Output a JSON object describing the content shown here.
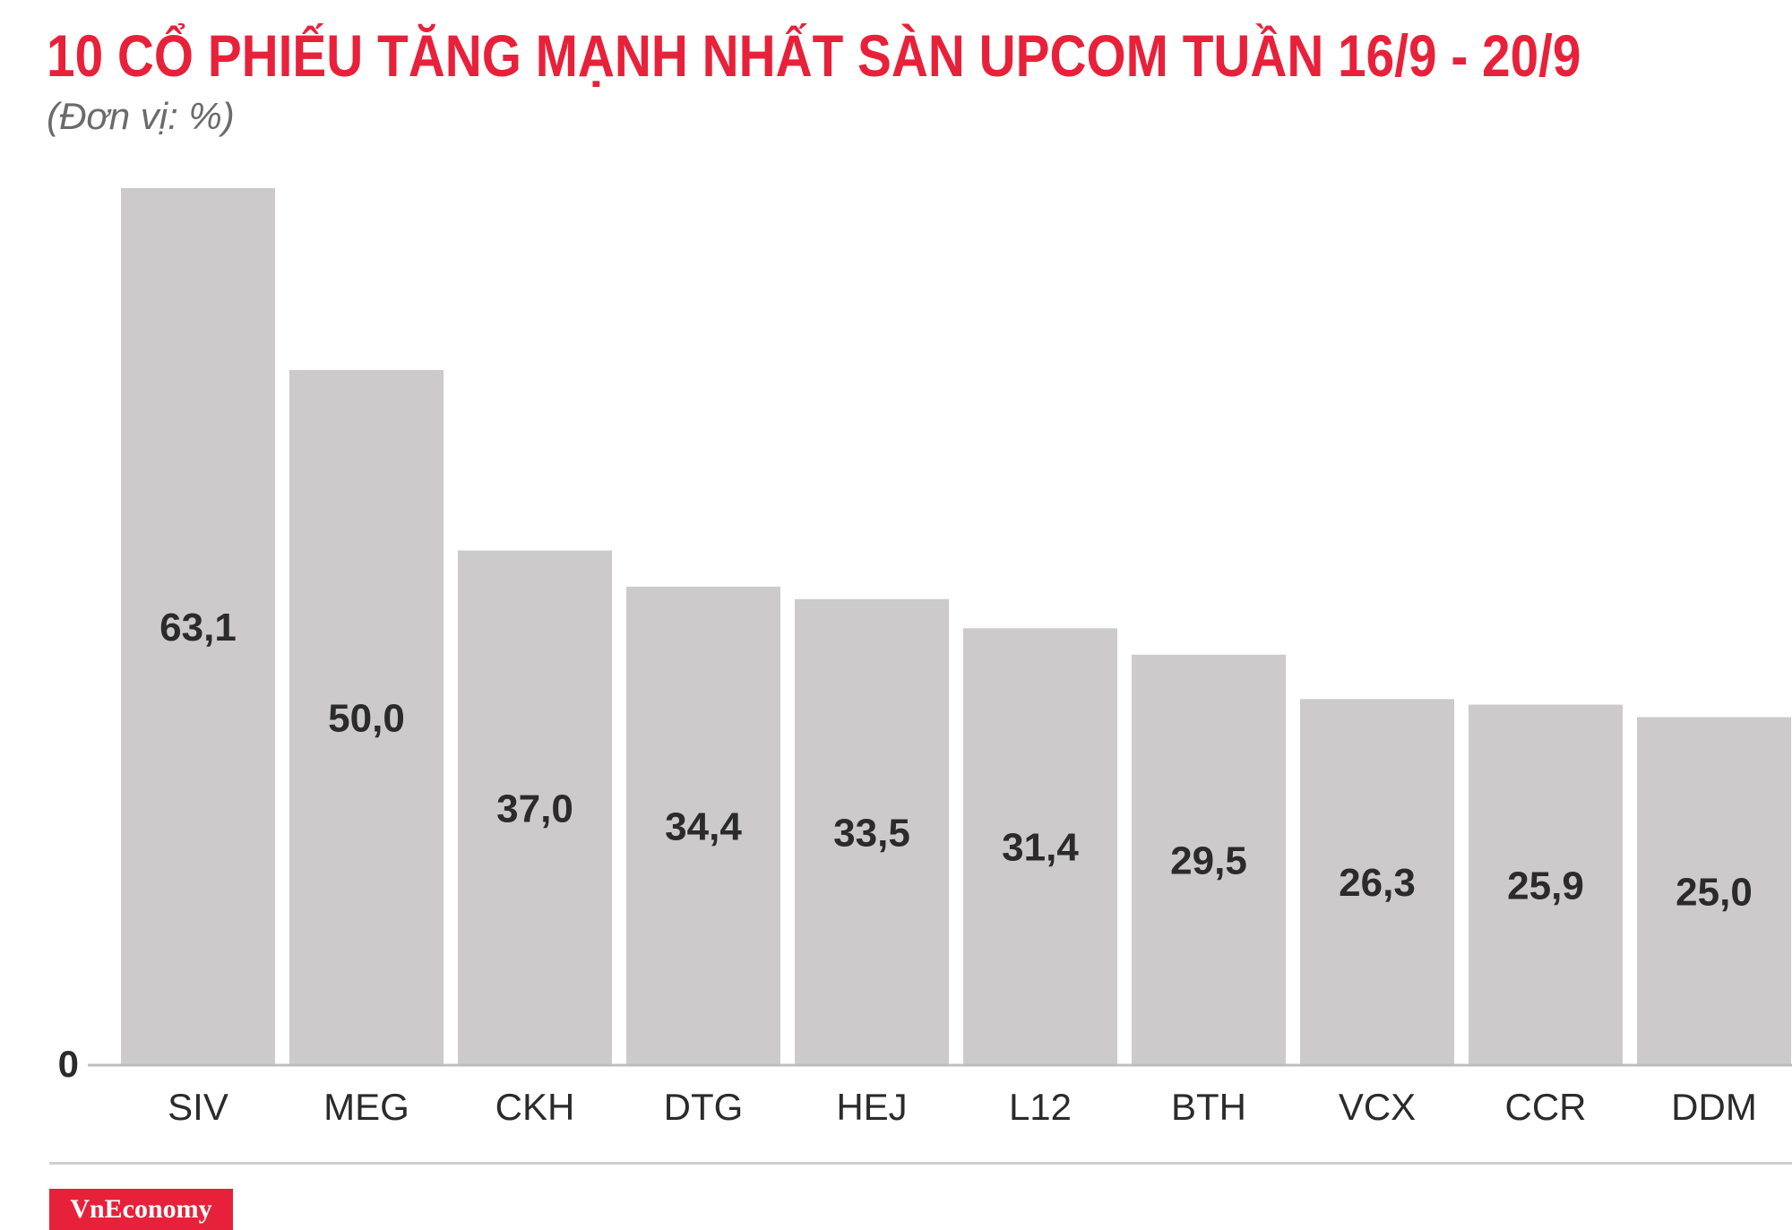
{
  "title": "10 CỔ PHIẾU TĂNG MẠNH NHẤT SÀN UPCOM TUẦN 16/9 - 20/9",
  "subtitle": "(Đơn vị: %)",
  "logo_text": "VnEconomy",
  "colors": {
    "title": "#e8213a",
    "bar": "#cccacb",
    "axis": "#bdbdbd",
    "label": "#2b2b2b",
    "logo_bg": "#e8213a"
  },
  "chart_data": {
    "type": "bar",
    "title": "10 CỔ PHIẾU TĂNG MẠNH NHẤT SÀN UPCOM TUẦN 16/9 - 20/9",
    "subtitle": "(Đơn vị: %)",
    "categories": [
      "SIV",
      "MEG",
      "CKH",
      "DTG",
      "HEJ",
      "L12",
      "BTH",
      "VCX",
      "CCR",
      "DDM"
    ],
    "values": [
      63.1,
      50.0,
      37.0,
      34.4,
      33.5,
      31.4,
      29.5,
      26.3,
      25.9,
      25.0
    ],
    "value_labels": [
      "63,1",
      "50,0",
      "37,0",
      "34,4",
      "33,5",
      "31,4",
      "29,5",
      "26,3",
      "25,9",
      "25,0"
    ],
    "yticks": [
      "0"
    ],
    "ylim": [
      0,
      63.1
    ],
    "grid": false,
    "legend": "none"
  }
}
